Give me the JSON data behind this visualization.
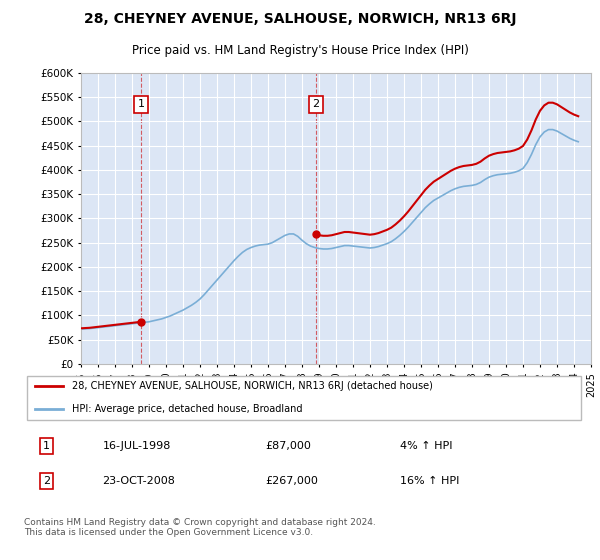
{
  "title": "28, CHEYNEY AVENUE, SALHOUSE, NORWICH, NR13 6RJ",
  "subtitle": "Price paid vs. HM Land Registry's House Price Index (HPI)",
  "legend_label_red": "28, CHEYNEY AVENUE, SALHOUSE, NORWICH, NR13 6RJ (detached house)",
  "legend_label_blue": "HPI: Average price, detached house, Broadland",
  "annotation1_date": "16-JUL-1998",
  "annotation1_price": "£87,000",
  "annotation1_hpi": "4% ↑ HPI",
  "annotation2_date": "23-OCT-2008",
  "annotation2_price": "£267,000",
  "annotation2_hpi": "16% ↑ HPI",
  "footer": "Contains HM Land Registry data © Crown copyright and database right 2024.\nThis data is licensed under the Open Government Licence v3.0.",
  "background_color": "#dce6f5",
  "fig_bg_color": "#ffffff",
  "red_color": "#cc0000",
  "blue_color": "#7aaed6",
  "grid_color": "#ffffff",
  "ylim_min": 0,
  "ylim_max": 600000,
  "ytick_step": 50000,
  "sale1_year": 1998.54,
  "sale1_price": 87000,
  "sale2_year": 2008.81,
  "sale2_price": 267000,
  "hpi_years": [
    1995.0,
    1995.25,
    1995.5,
    1995.75,
    1996.0,
    1996.25,
    1996.5,
    1996.75,
    1997.0,
    1997.25,
    1997.5,
    1997.75,
    1998.0,
    1998.25,
    1998.5,
    1998.75,
    1999.0,
    1999.25,
    1999.5,
    1999.75,
    2000.0,
    2000.25,
    2000.5,
    2000.75,
    2001.0,
    2001.25,
    2001.5,
    2001.75,
    2002.0,
    2002.25,
    2002.5,
    2002.75,
    2003.0,
    2003.25,
    2003.5,
    2003.75,
    2004.0,
    2004.25,
    2004.5,
    2004.75,
    2005.0,
    2005.25,
    2005.5,
    2005.75,
    2006.0,
    2006.25,
    2006.5,
    2006.75,
    2007.0,
    2007.25,
    2007.5,
    2007.75,
    2008.0,
    2008.25,
    2008.5,
    2008.75,
    2009.0,
    2009.25,
    2009.5,
    2009.75,
    2010.0,
    2010.25,
    2010.5,
    2010.75,
    2011.0,
    2011.25,
    2011.5,
    2011.75,
    2012.0,
    2012.25,
    2012.5,
    2012.75,
    2013.0,
    2013.25,
    2013.5,
    2013.75,
    2014.0,
    2014.25,
    2014.5,
    2014.75,
    2015.0,
    2015.25,
    2015.5,
    2015.75,
    2016.0,
    2016.25,
    2016.5,
    2016.75,
    2017.0,
    2017.25,
    2017.5,
    2017.75,
    2018.0,
    2018.25,
    2018.5,
    2018.75,
    2019.0,
    2019.25,
    2019.5,
    2019.75,
    2020.0,
    2020.25,
    2020.5,
    2020.75,
    2021.0,
    2021.25,
    2021.5,
    2021.75,
    2022.0,
    2022.25,
    2022.5,
    2022.75,
    2023.0,
    2023.25,
    2023.5,
    2023.75,
    2024.0,
    2024.25
  ],
  "hpi_values": [
    72000,
    72500,
    73000,
    74000,
    75000,
    76000,
    77000,
    78000,
    79000,
    80000,
    81000,
    82000,
    83000,
    84000,
    85000,
    86000,
    87000,
    89000,
    91000,
    93000,
    96000,
    99000,
    103000,
    107000,
    111000,
    116000,
    121000,
    127000,
    134000,
    143000,
    153000,
    163000,
    173000,
    183000,
    193000,
    203000,
    213000,
    222000,
    230000,
    236000,
    240000,
    243000,
    245000,
    246000,
    247000,
    250000,
    255000,
    260000,
    265000,
    268000,
    268000,
    263000,
    255000,
    248000,
    243000,
    240000,
    238000,
    237000,
    237000,
    238000,
    240000,
    242000,
    244000,
    244000,
    243000,
    242000,
    241000,
    240000,
    239000,
    240000,
    242000,
    245000,
    248000,
    252000,
    258000,
    265000,
    273000,
    282000,
    292000,
    302000,
    312000,
    322000,
    330000,
    337000,
    342000,
    347000,
    352000,
    357000,
    361000,
    364000,
    366000,
    367000,
    368000,
    370000,
    374000,
    380000,
    385000,
    388000,
    390000,
    391000,
    392000,
    393000,
    395000,
    398000,
    403000,
    415000,
    432000,
    452000,
    468000,
    478000,
    483000,
    483000,
    480000,
    475000,
    470000,
    465000,
    461000,
    458000
  ],
  "xtick_years": [
    1995,
    1996,
    1997,
    1998,
    1999,
    2000,
    2001,
    2002,
    2003,
    2004,
    2005,
    2006,
    2007,
    2008,
    2009,
    2010,
    2011,
    2012,
    2013,
    2014,
    2015,
    2016,
    2017,
    2018,
    2019,
    2020,
    2021,
    2022,
    2023,
    2024,
    2025
  ]
}
